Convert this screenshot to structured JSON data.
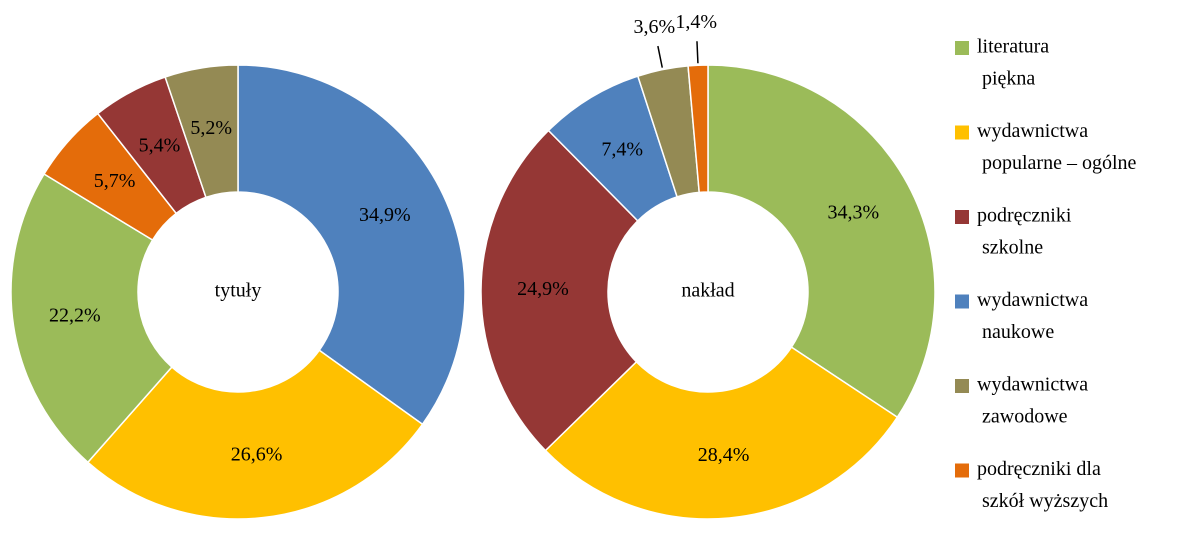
{
  "chart_data": [
    {
      "type": "donut",
      "center_label": "tytuły",
      "values": [
        34.9,
        26.6,
        22.2,
        5.7,
        5.4,
        5.2
      ],
      "value_labels": [
        "34,9%",
        "26,6%",
        "22,2%",
        "5,7%",
        "5,4%",
        "5,2%"
      ],
      "colors": [
        "#4f81bd",
        "#ffc000",
        "#9bbb59",
        "#e46c0a",
        "#953735",
        "#948a54"
      ]
    },
    {
      "type": "donut",
      "center_label": "nakład",
      "values": [
        34.3,
        28.4,
        24.9,
        7.4,
        3.6,
        1.4
      ],
      "value_labels": [
        "34,3%",
        "28,4%",
        "24,9%",
        "7,4%",
        "3,6%",
        "1,4%"
      ],
      "colors": [
        "#9bbb59",
        "#ffc000",
        "#953735",
        "#4f81bd",
        "#948a54",
        "#e46c0a"
      ]
    }
  ],
  "legend": [
    {
      "lines": [
        "literatura",
        "piękna"
      ],
      "color": "#9bbb59"
    },
    {
      "lines": [
        "wydawnictwa",
        "popularne – ogólne"
      ],
      "color": "#ffc000"
    },
    {
      "lines": [
        "podręczniki",
        "szkolne"
      ],
      "color": "#953735"
    },
    {
      "lines": [
        "wydawnictwa",
        "naukowe"
      ],
      "color": "#4f81bd"
    },
    {
      "lines": [
        "wydawnictwa",
        "zawodowe"
      ],
      "color": "#948a54"
    },
    {
      "lines": [
        "podręczniki dla",
        "szkół wyższych"
      ],
      "color": "#e46c0a"
    }
  ]
}
